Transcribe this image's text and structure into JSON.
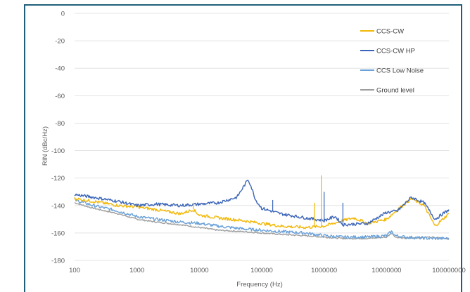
{
  "chart_data": {
    "type": "line",
    "title": "",
    "xlabel": "Frequency (Hz)",
    "ylabel": "RIN (dBc/Hz)",
    "xscale": "log",
    "xlim": [
      100,
      100000000
    ],
    "ylim": [
      -180,
      0
    ],
    "x_ticks": [
      "100",
      "1000",
      "10000",
      "100000",
      "1000000",
      "10000000",
      "100000000"
    ],
    "y_ticks": [
      "0",
      "-20",
      "-40",
      "-60",
      "-80",
      "-100",
      "-120",
      "-140",
      "-160",
      "-180"
    ],
    "grid": "horizontal",
    "legend_position": "top-right",
    "series": [
      {
        "name": "CCS-CW",
        "color": "#f2b705",
        "points": [
          [
            100,
            -135
          ],
          [
            200,
            -137
          ],
          [
            500,
            -140
          ],
          [
            1000,
            -141
          ],
          [
            2000,
            -143
          ],
          [
            5000,
            -146
          ],
          [
            8000,
            -143
          ],
          [
            10000,
            -147
          ],
          [
            20000,
            -149
          ],
          [
            50000,
            -151
          ],
          [
            100000,
            -153
          ],
          [
            200000,
            -155
          ],
          [
            500000,
            -156
          ],
          [
            1000000,
            -155
          ],
          [
            2000000,
            -151
          ],
          [
            3000000,
            -149
          ],
          [
            5000000,
            -153
          ],
          [
            10000000,
            -150
          ],
          [
            15000000,
            -143
          ],
          [
            25000000,
            -135
          ],
          [
            40000000,
            -140
          ],
          [
            60000000,
            -155
          ],
          [
            100000000,
            -146
          ]
        ]
      },
      {
        "name": "CCS-CW HP",
        "color": "#3a64b8",
        "points": [
          [
            100,
            -132
          ],
          [
            200,
            -134
          ],
          [
            500,
            -137
          ],
          [
            1000,
            -140
          ],
          [
            2000,
            -139
          ],
          [
            5000,
            -140
          ],
          [
            10000,
            -139
          ],
          [
            20000,
            -138
          ],
          [
            40000,
            -134
          ],
          [
            55000,
            -124
          ],
          [
            60000,
            -121
          ],
          [
            65000,
            -124
          ],
          [
            80000,
            -136
          ],
          [
            100000,
            -142
          ],
          [
            200000,
            -146
          ],
          [
            500000,
            -149
          ],
          [
            1000000,
            -151
          ],
          [
            1500000,
            -148
          ],
          [
            2000000,
            -154
          ],
          [
            5000000,
            -153
          ],
          [
            10000000,
            -145
          ],
          [
            15000000,
            -144
          ],
          [
            25000000,
            -134
          ],
          [
            40000000,
            -138
          ],
          [
            60000000,
            -150
          ],
          [
            100000000,
            -143
          ]
        ]
      },
      {
        "name": "CCS Low Noise",
        "color": "#6aa1d8",
        "points": [
          [
            100,
            -136
          ],
          [
            200,
            -140
          ],
          [
            500,
            -144
          ],
          [
            1000,
            -148
          ],
          [
            2000,
            -150
          ],
          [
            5000,
            -152
          ],
          [
            10000,
            -153
          ],
          [
            20000,
            -155
          ],
          [
            50000,
            -157
          ],
          [
            100000,
            -158
          ],
          [
            200000,
            -159
          ],
          [
            500000,
            -160
          ],
          [
            1000000,
            -162
          ],
          [
            2000000,
            -163
          ],
          [
            5000000,
            -163
          ],
          [
            10000000,
            -162
          ],
          [
            12000000,
            -159
          ],
          [
            14000000,
            -162
          ],
          [
            20000000,
            -163
          ],
          [
            50000000,
            -164
          ],
          [
            100000000,
            -164
          ]
        ]
      },
      {
        "name": "Ground level",
        "color": "#9e9e9e",
        "points": [
          [
            100,
            -138
          ],
          [
            200,
            -142
          ],
          [
            500,
            -146
          ],
          [
            1000,
            -150
          ],
          [
            2000,
            -152
          ],
          [
            5000,
            -154
          ],
          [
            10000,
            -156
          ],
          [
            20000,
            -158
          ],
          [
            50000,
            -159
          ],
          [
            100000,
            -160
          ],
          [
            200000,
            -161
          ],
          [
            500000,
            -162
          ],
          [
            1000000,
            -163
          ],
          [
            2000000,
            -164
          ],
          [
            5000000,
            -164
          ],
          [
            10000000,
            -163
          ],
          [
            12000000,
            -160
          ],
          [
            14000000,
            -163
          ],
          [
            20000000,
            -164
          ],
          [
            50000000,
            -163
          ],
          [
            100000000,
            -164
          ]
        ]
      }
    ],
    "spikes": [
      {
        "series": "CCS-CW",
        "x": 8000,
        "y": -138
      },
      {
        "series": "CCS-CW",
        "x": 900000,
        "y": -118
      },
      {
        "series": "CCS-CW",
        "x": 700000,
        "y": -138
      },
      {
        "series": "CCS-CW HP",
        "x": 150000,
        "y": -136
      },
      {
        "series": "CCS-CW HP",
        "x": 1000000,
        "y": -130
      },
      {
        "series": "CCS-CW HP",
        "x": 2000000,
        "y": -138
      }
    ]
  }
}
